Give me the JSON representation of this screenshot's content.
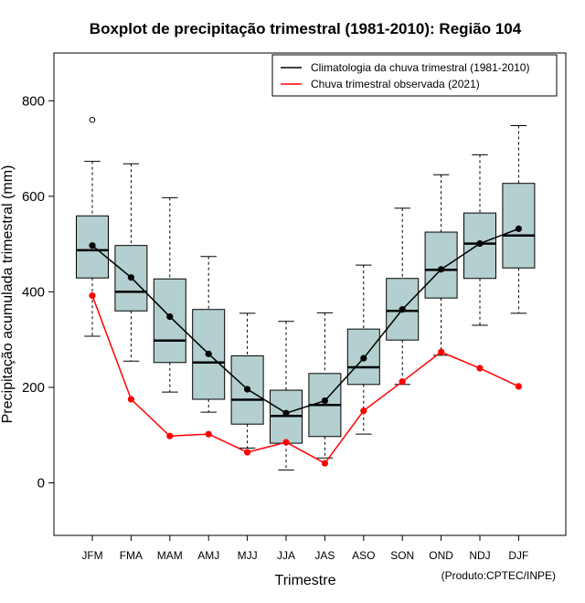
{
  "chart_data": {
    "type": "boxplot",
    "title": "Boxplot de precipitação trimestral (1981-2010): Região 104",
    "xlabel": "Trimestre",
    "ylabel": "Precipitação acumulada trimestral (mm)",
    "credit": "(Produto:CPTEC/INPE)",
    "ylim": [
      -110,
      900
    ],
    "yticks": [
      0,
      200,
      400,
      600,
      800
    ],
    "categories": [
      "JFM",
      "FMA",
      "MAM",
      "AMJ",
      "MJJ",
      "JJA",
      "JAS",
      "ASO",
      "SON",
      "OND",
      "NDJ",
      "DJF"
    ],
    "boxes": [
      {
        "min": 307,
        "q1": 429,
        "median": 487,
        "q3": 559,
        "max": 673,
        "outliers": [
          760
        ]
      },
      {
        "min": 255,
        "q1": 360,
        "median": 400,
        "q3": 497,
        "max": 668,
        "outliers": []
      },
      {
        "min": 190,
        "q1": 252,
        "median": 298,
        "q3": 427,
        "max": 597,
        "outliers": []
      },
      {
        "min": 148,
        "q1": 175,
        "median": 252,
        "q3": 363,
        "max": 474,
        "outliers": []
      },
      {
        "min": 73,
        "q1": 123,
        "median": 174,
        "q3": 266,
        "max": 355,
        "outliers": []
      },
      {
        "min": 27,
        "q1": 83,
        "median": 140,
        "q3": 194,
        "max": 338,
        "outliers": []
      },
      {
        "min": 52,
        "q1": 97,
        "median": 163,
        "q3": 229,
        "max": 356,
        "outliers": []
      },
      {
        "min": 102,
        "q1": 206,
        "median": 242,
        "q3": 322,
        "max": 456,
        "outliers": []
      },
      {
        "min": 206,
        "q1": 299,
        "median": 360,
        "q3": 428,
        "max": 575,
        "outliers": []
      },
      {
        "min": 267,
        "q1": 387,
        "median": 446,
        "q3": 525,
        "max": 645,
        "outliers": []
      },
      {
        "min": 330,
        "q1": 428,
        "median": 501,
        "q3": 565,
        "max": 687,
        "outliers": []
      },
      {
        "min": 355,
        "q1": 450,
        "median": 518,
        "q3": 627,
        "max": 748,
        "outliers": []
      }
    ],
    "series": [
      {
        "name": "Climatologia da chuva trimestral (1981-2010)",
        "color": "#000000",
        "values": [
          497,
          430,
          348,
          270,
          196,
          146,
          172,
          261,
          363,
          447,
          501,
          532
        ]
      },
      {
        "name": "Chuva trimestral observada (2021)",
        "color": "#ff0000",
        "values": [
          392,
          175,
          98,
          102,
          64,
          85,
          41,
          151,
          212,
          274,
          240,
          202
        ]
      }
    ],
    "box_fill": "#b4cfcf",
    "legend_position": "top-right"
  }
}
